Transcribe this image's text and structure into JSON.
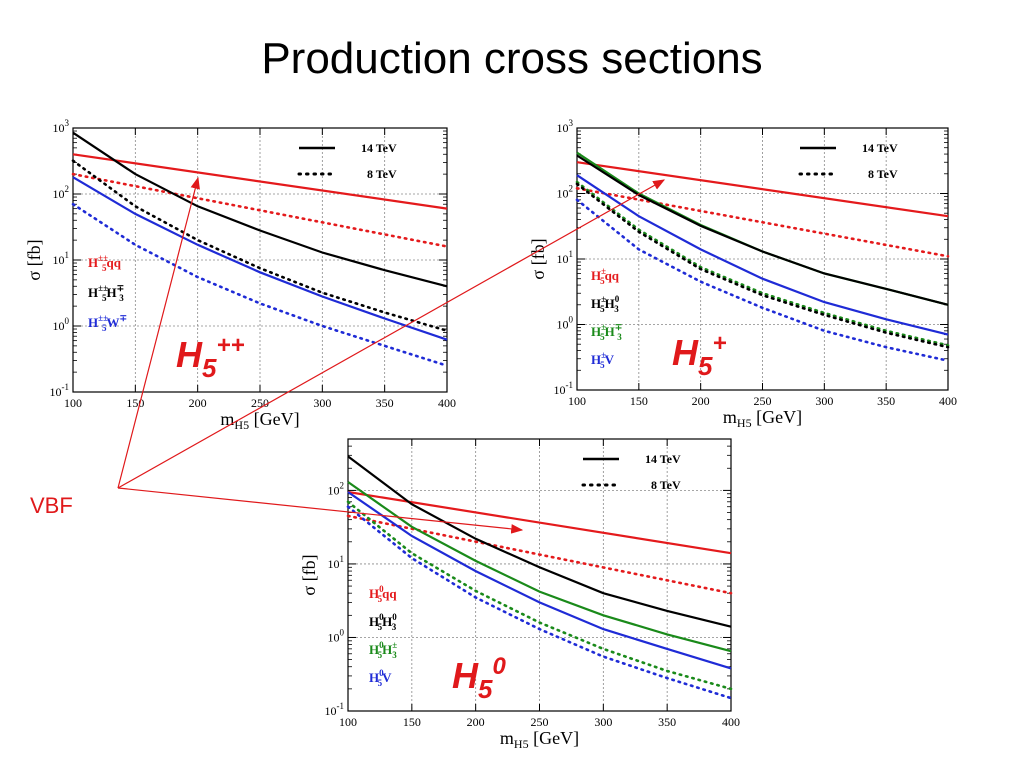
{
  "title": "Production cross sections",
  "vbf_label": "VBF",
  "colors": {
    "red": "#e41a1c",
    "black": "#000000",
    "blue": "#1f2bd6",
    "green": "#1a8a1a",
    "accent": "#e0191b"
  },
  "legend": {
    "solid": "14 TeV",
    "dotted": "8 TeV"
  },
  "xlabel": {
    "main": "m",
    "sub": "H5",
    "unit": "[GeV]"
  },
  "ylabel": "σ [fb]",
  "chart_data": [
    {
      "type": "line",
      "panel_label": {
        "base": "H",
        "sub": "5",
        "sup": "++"
      },
      "xlim": [
        100,
        400
      ],
      "ylog": true,
      "ylim": [
        0.1,
        1000
      ],
      "grid": true,
      "legend_position": "top-right",
      "xticks": [
        "100",
        "150",
        "200",
        "250",
        "300",
        "350",
        "400"
      ],
      "yticks": [
        {
          "base": "10",
          "exp": "-1"
        },
        {
          "base": "10",
          "exp": "0"
        },
        {
          "base": "10",
          "exp": "1"
        },
        {
          "base": "10",
          "exp": "2"
        },
        {
          "base": "10",
          "exp": "3"
        }
      ],
      "process_labels": [
        {
          "text": "H",
          "sub": "5",
          "sup": "±±",
          "rest": "qq",
          "color": "red"
        },
        {
          "text": "H",
          "sub": "5",
          "sup": "±±",
          "rest": "H",
          "sub2": "3",
          "sup2": "∓",
          "color": "black"
        },
        {
          "text": "H",
          "sub": "5",
          "sup": "±±",
          "rest": "W",
          "sup2": "∓",
          "color": "blue"
        }
      ],
      "series": [
        {
          "color": "red",
          "style": "solid",
          "x": [
            100,
            400
          ],
          "y": [
            400,
            60
          ]
        },
        {
          "color": "red",
          "style": "dotted",
          "x": [
            100,
            400
          ],
          "y": [
            200,
            16
          ]
        },
        {
          "color": "black",
          "style": "solid",
          "x": [
            100,
            150,
            200,
            250,
            300,
            350,
            400
          ],
          "y": [
            850,
            200,
            65,
            28,
            13,
            7,
            4
          ]
        },
        {
          "color": "black",
          "style": "dotted",
          "x": [
            100,
            150,
            200,
            250,
            300,
            350,
            400
          ],
          "y": [
            320,
            65,
            20,
            7.5,
            3.2,
            1.6,
            0.85
          ]
        },
        {
          "color": "blue",
          "style": "solid",
          "x": [
            100,
            150,
            200,
            250,
            300,
            350,
            400
          ],
          "y": [
            180,
            50,
            17,
            6.5,
            2.8,
            1.3,
            0.62
          ]
        },
        {
          "color": "blue",
          "style": "dotted",
          "x": [
            100,
            150,
            200,
            250,
            300,
            350,
            400
          ],
          "y": [
            70,
            17,
            5.5,
            2.2,
            1,
            0.5,
            0.25
          ]
        }
      ]
    },
    {
      "type": "line",
      "panel_label": {
        "base": "H",
        "sub": "5",
        "sup": "+"
      },
      "xlim": [
        100,
        400
      ],
      "ylog": true,
      "ylim": [
        0.1,
        1000
      ],
      "grid": true,
      "legend_position": "top-right",
      "xticks": [
        "100",
        "150",
        "200",
        "250",
        "300",
        "350",
        "400"
      ],
      "yticks": [
        {
          "base": "10",
          "exp": "-1"
        },
        {
          "base": "10",
          "exp": "0"
        },
        {
          "base": "10",
          "exp": "1"
        },
        {
          "base": "10",
          "exp": "2"
        },
        {
          "base": "10",
          "exp": "3"
        }
      ],
      "process_labels": [
        {
          "text": "H",
          "sub": "5",
          "sup": "±",
          "rest": "qq",
          "color": "red"
        },
        {
          "text": "H",
          "sub": "5",
          "sup": "±",
          "rest": "H",
          "sub2": "3",
          "sup2": "0",
          "color": "black"
        },
        {
          "text": "H",
          "sub": "5",
          "sup": "±",
          "rest": "H",
          "sub2": "3",
          "sup2": "∓",
          "color": "green"
        },
        {
          "text": "H",
          "sub": "5",
          "sup": "±",
          "rest": "V",
          "color": "blue"
        }
      ],
      "series": [
        {
          "color": "red",
          "style": "solid",
          "x": [
            100,
            400
          ],
          "y": [
            300,
            45
          ]
        },
        {
          "color": "red",
          "style": "dotted",
          "x": [
            100,
            400
          ],
          "y": [
            120,
            11
          ]
        },
        {
          "color": "green",
          "style": "solid",
          "x": [
            100,
            150,
            200,
            250,
            300,
            350,
            400
          ],
          "y": [
            420,
            100,
            33,
            13,
            6,
            3.5,
            2
          ]
        },
        {
          "color": "black",
          "style": "solid",
          "x": [
            100,
            150,
            200,
            250,
            300,
            350,
            400
          ],
          "y": [
            380,
            95,
            32,
            13,
            6,
            3.5,
            2
          ]
        },
        {
          "color": "blue",
          "style": "solid",
          "x": [
            100,
            150,
            200,
            250,
            300,
            350,
            400
          ],
          "y": [
            190,
            45,
            14,
            5,
            2.2,
            1.2,
            0.7
          ]
        },
        {
          "color": "green",
          "style": "dotted",
          "x": [
            100,
            150,
            200,
            250,
            300,
            350,
            400
          ],
          "y": [
            150,
            28,
            7.5,
            3,
            1.5,
            0.8,
            0.48
          ]
        },
        {
          "color": "black",
          "style": "dotted",
          "x": [
            100,
            150,
            200,
            250,
            300,
            350,
            400
          ],
          "y": [
            140,
            26,
            7,
            2.8,
            1.4,
            0.75,
            0.45
          ]
        },
        {
          "color": "blue",
          "style": "dotted",
          "x": [
            100,
            150,
            200,
            250,
            300,
            350,
            400
          ],
          "y": [
            80,
            14,
            4.5,
            1.8,
            0.8,
            0.45,
            0.28
          ]
        }
      ]
    },
    {
      "type": "line",
      "panel_label": {
        "base": "H",
        "sub": "5",
        "sup": "0"
      },
      "xlim": [
        100,
        400
      ],
      "ylog": true,
      "ylim": [
        0.1,
        500
      ],
      "grid": true,
      "legend_position": "top-right",
      "xticks": [
        "100",
        "150",
        "200",
        "250",
        "300",
        "350",
        "400"
      ],
      "yticks": [
        {
          "base": "10",
          "exp": "-1"
        },
        {
          "base": "10",
          "exp": "0"
        },
        {
          "base": "10",
          "exp": "1"
        },
        {
          "base": "10",
          "exp": "2"
        }
      ],
      "process_labels": [
        {
          "text": "H",
          "sub": "5",
          "sup": "0",
          "rest": "qq",
          "color": "red"
        },
        {
          "text": "H",
          "sub": "5",
          "sup": "0",
          "rest": "H",
          "sub2": "3",
          "sup2": "0",
          "color": "black"
        },
        {
          "text": "H",
          "sub": "5",
          "sup": "0",
          "rest": "H",
          "sub2": "3",
          "sup2": "±",
          "color": "green"
        },
        {
          "text": "H",
          "sub": "5",
          "sup": "0",
          "rest": "V",
          "color": "blue"
        }
      ],
      "series": [
        {
          "color": "red",
          "style": "solid",
          "x": [
            100,
            400
          ],
          "y": [
            95,
            14
          ]
        },
        {
          "color": "red",
          "style": "dotted",
          "x": [
            100,
            400
          ],
          "y": [
            45,
            4
          ]
        },
        {
          "color": "black",
          "style": "solid",
          "x": [
            100,
            150,
            200,
            250,
            300,
            350,
            400
          ],
          "y": [
            290,
            65,
            22,
            9,
            4,
            2.3,
            1.4
          ]
        },
        {
          "color": "green",
          "style": "solid",
          "x": [
            100,
            150,
            200,
            250,
            300,
            350,
            400
          ],
          "y": [
            130,
            32,
            11,
            4.2,
            2,
            1.1,
            0.65
          ]
        },
        {
          "color": "blue",
          "style": "solid",
          "x": [
            100,
            150,
            200,
            250,
            300,
            350,
            400
          ],
          "y": [
            95,
            24,
            8,
            3,
            1.3,
            0.7,
            0.38
          ]
        },
        {
          "color": "green",
          "style": "dotted",
          "x": [
            100,
            150,
            200,
            250,
            300,
            350,
            400
          ],
          "y": [
            70,
            14,
            4.3,
            1.6,
            0.7,
            0.35,
            0.2
          ]
        },
        {
          "color": "blue",
          "style": "dotted",
          "x": [
            100,
            150,
            200,
            250,
            300,
            350,
            400
          ],
          "y": [
            60,
            12,
            3.5,
            1.3,
            0.55,
            0.28,
            0.15
          ]
        }
      ]
    }
  ]
}
